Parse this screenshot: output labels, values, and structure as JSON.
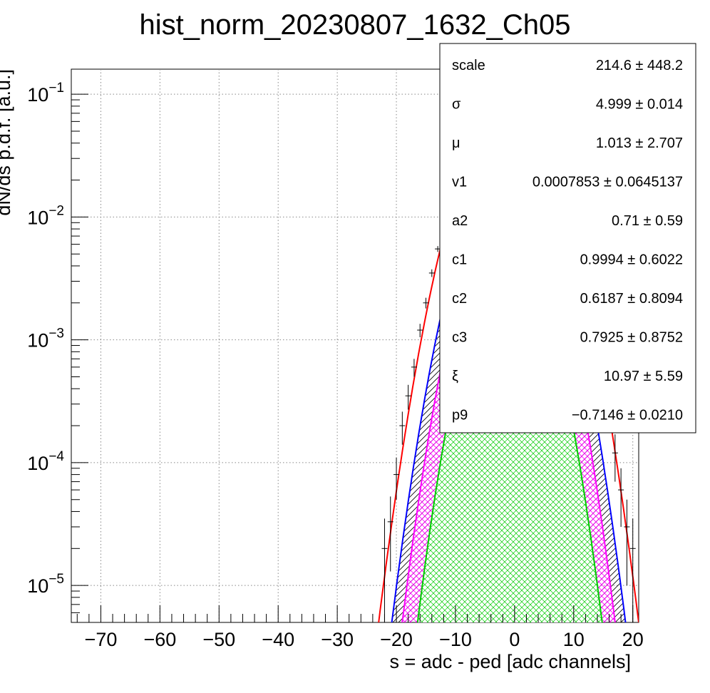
{
  "chart_data": {
    "type": "line",
    "title": "hist_norm_20230807_1632_Ch05",
    "xlabel": "s = adc - ped [adc channels]",
    "ylabel": "dN/ds p.d.f. [a.u.]",
    "xlim": [
      -75,
      21
    ],
    "ylim": [
      5e-06,
      0.16
    ],
    "yscale": "log",
    "grid": true,
    "x_ticks": [
      -70,
      -60,
      -50,
      -40,
      -30,
      -20,
      -10,
      0,
      10,
      20
    ],
    "x_tick_labels": [
      "−70",
      "−60",
      "−50",
      "−40",
      "−30",
      "−20",
      "−10",
      "0",
      "10",
      "20"
    ],
    "y_ticks": [
      1e-05,
      0.0001,
      0.001,
      0.01,
      0.1
    ],
    "y_tick_labels": [
      {
        "base": "10",
        "exp": "−5"
      },
      {
        "base": "10",
        "exp": "−4"
      },
      {
        "base": "10",
        "exp": "−3"
      },
      {
        "base": "10",
        "exp": "−2"
      },
      {
        "base": "10",
        "exp": "−1"
      }
    ],
    "series": [
      {
        "color": "#ff0000",
        "peak": 0.08,
        "mu": -1.0,
        "sigma": 5.0,
        "fill": "none"
      },
      {
        "color": "#0000ff",
        "peak": 0.029,
        "mu": -1.0,
        "sigma": 4.75,
        "fill": "hatch-black"
      },
      {
        "color": "#ff00ff",
        "peak": 0.015,
        "mu": -1.0,
        "sigma": 4.5,
        "fill": "hatch-magenta"
      },
      {
        "color": "#00cc00",
        "peak": 0.005,
        "mu": -0.8,
        "sigma": 4.2,
        "fill": "hatch-green"
      }
    ],
    "data_points": [
      {
        "x": -22,
        "y": 2e-05,
        "err": 1.5e-05
      },
      {
        "x": -21,
        "y": 3.3e-05,
        "err": 2e-05
      },
      {
        "x": -20,
        "y": 8e-05,
        "err": 3e-05
      },
      {
        "x": -19,
        "y": 0.0002,
        "err": 6e-05
      },
      {
        "x": -18,
        "y": 0.00035,
        "err": 8e-05
      },
      {
        "x": -17,
        "y": 0.0006,
        "err": 0.0001
      },
      {
        "x": -16,
        "y": 0.0012,
        "err": 0.00015
      },
      {
        "x": -15,
        "y": 0.002,
        "err": 0.0002
      },
      {
        "x": -14,
        "y": 0.0035,
        "err": 0.00025
      },
      {
        "x": -13,
        "y": 0.0055,
        "err": 0.0003
      },
      {
        "x": 16,
        "y": 0.00025,
        "err": 7e-05
      },
      {
        "x": 17,
        "y": 0.00012,
        "err": 5e-05
      },
      {
        "x": 18,
        "y": 6e-05,
        "err": 3e-05
      },
      {
        "x": 19,
        "y": 3e-05,
        "err": 2e-05
      },
      {
        "x": 20,
        "y": 2e-05,
        "err": 1.5e-05
      }
    ],
    "stats": [
      {
        "name": "scale",
        "value": "214.6 ± 448.2"
      },
      {
        "name": "σ",
        "value": "4.999 ± 0.014"
      },
      {
        "name": "μ",
        "value": "1.013 ± 2.707"
      },
      {
        "name": "v1",
        "value": "0.0007853 ± 0.0645137"
      },
      {
        "name": "a2",
        "value": "0.71 ± 0.59"
      },
      {
        "name": "c1",
        "value": "0.9994 ± 0.6022"
      },
      {
        "name": "c2",
        "value": "0.6187 ± 0.8094"
      },
      {
        "name": "c3",
        "value": "0.7925 ± 0.8752"
      },
      {
        "name": "ξ",
        "value": "10.97 ± 5.59"
      },
      {
        "name": "p9",
        "value": "−0.7146 ± 0.0210"
      }
    ]
  }
}
